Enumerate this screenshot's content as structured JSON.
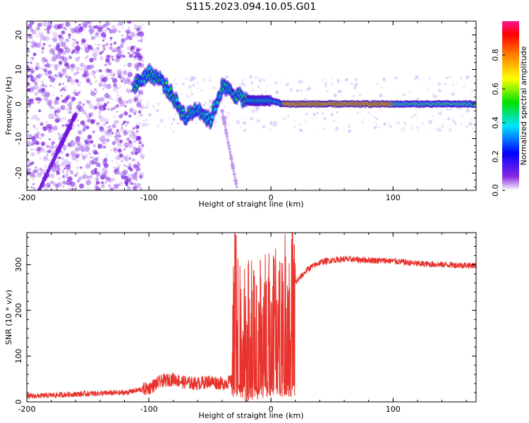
{
  "title": "S115.2023.094.10.05.G01",
  "chart_data": [
    {
      "type": "heatmap",
      "xlabel": "Height of straight line (km)",
      "ylabel": "Frequency (Hz)",
      "xlim": [
        -200,
        168
      ],
      "ylim": [
        -25,
        24
      ],
      "xticks": [
        -200,
        -100,
        0,
        100
      ],
      "yticks": [
        -20,
        -10,
        0,
        10,
        20
      ],
      "colorbar": {
        "label": "Normalized spectral amplitude",
        "range": [
          0,
          1
        ],
        "ticks": [
          "0.0",
          "0.2",
          "0.4",
          "0.6",
          "0.8"
        ]
      },
      "main_trace": [
        {
          "x": -110,
          "y": 6
        },
        {
          "x": -100,
          "y": 9
        },
        {
          "x": -90,
          "y": 7
        },
        {
          "x": -80,
          "y": 2
        },
        {
          "x": -70,
          "y": -4
        },
        {
          "x": -60,
          "y": -1
        },
        {
          "x": -50,
          "y": -5
        },
        {
          "x": -40,
          "y": 5
        },
        {
          "x": -30,
          "y": 3
        },
        {
          "x": -20,
          "y": 1
        },
        {
          "x": -10,
          "y": 1
        },
        {
          "x": 0,
          "y": 1
        },
        {
          "x": 10,
          "y": 0
        },
        {
          "x": 50,
          "y": 0
        },
        {
          "x": 100,
          "y": 0
        },
        {
          "x": 168,
          "y": 0
        }
      ]
    },
    {
      "type": "line",
      "xlabel": "Height of straight line (km)",
      "ylabel": "SNR (10 * v/v)",
      "xlim": [
        -200,
        168
      ],
      "ylim": [
        0,
        370
      ],
      "xticks": [
        -200,
        -100,
        0,
        100
      ],
      "yticks": [
        0,
        100,
        200,
        300
      ],
      "series": [
        {
          "color": "#e8322b",
          "x": [
            -200,
            -150,
            -120,
            -100,
            -90,
            -80,
            -70,
            -60,
            -50,
            -40,
            -32,
            -30,
            -25,
            -20,
            -10,
            0,
            10,
            20,
            30,
            40,
            50,
            60,
            80,
            100,
            120,
            140,
            168
          ],
          "y": [
            12,
            18,
            20,
            30,
            45,
            50,
            42,
            40,
            45,
            40,
            45,
            230,
            170,
            150,
            160,
            170,
            200,
            260,
            290,
            305,
            310,
            312,
            310,
            308,
            302,
            300,
            298
          ]
        }
      ]
    }
  ]
}
